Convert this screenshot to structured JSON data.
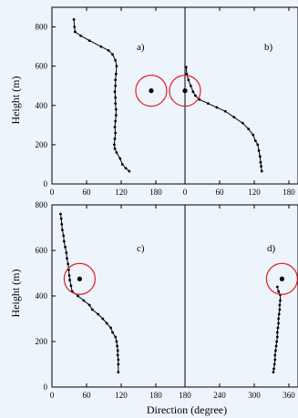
{
  "chart_data": [
    {
      "type": "line",
      "panel": "a)",
      "xlim": [
        0,
        180
      ],
      "ylim": [
        0,
        900
      ],
      "x_ticks": [
        "0",
        "60",
        "120",
        "180"
      ],
      "y_ticks": [
        "0",
        "200",
        "400",
        "600",
        "800"
      ],
      "ylabel": "Height (m)",
      "xlabel": "",
      "points": [
        [
          38,
          838
        ],
        [
          39,
          800
        ],
        [
          40,
          775
        ],
        [
          50,
          755
        ],
        [
          65,
          730
        ],
        [
          85,
          700
        ],
        [
          98,
          680
        ],
        [
          105,
          660
        ],
        [
          110,
          630
        ],
        [
          112,
          600
        ],
        [
          111,
          560
        ],
        [
          110,
          530
        ],
        [
          110,
          500
        ],
        [
          109,
          470
        ],
        [
          110,
          440
        ],
        [
          110,
          410
        ],
        [
          111,
          380
        ],
        [
          111,
          350
        ],
        [
          110,
          320
        ],
        [
          109,
          290
        ],
        [
          110,
          260
        ],
        [
          109,
          230
        ],
        [
          108,
          200
        ],
        [
          109,
          180
        ],
        [
          112,
          160
        ],
        [
          118,
          130
        ],
        [
          122,
          100
        ],
        [
          128,
          80
        ],
        [
          134,
          65
        ]
      ],
      "marker": {
        "x": 172,
        "y": 475
      }
    },
    {
      "type": "line",
      "panel": "b)",
      "xlim": [
        0,
        180
      ],
      "ylim": [
        0,
        900
      ],
      "x_ticks": [
        "0",
        "60",
        "120",
        "180"
      ],
      "y_ticks": [],
      "points": [
        [
          2,
          595
        ],
        [
          3,
          560
        ],
        [
          6,
          530
        ],
        [
          10,
          500
        ],
        [
          14,
          470
        ],
        [
          18,
          450
        ],
        [
          25,
          430
        ],
        [
          40,
          410
        ],
        [
          55,
          390
        ],
        [
          70,
          370
        ],
        [
          85,
          340
        ],
        [
          100,
          310
        ],
        [
          110,
          280
        ],
        [
          118,
          250
        ],
        [
          122,
          220
        ],
        [
          126,
          200
        ],
        [
          128,
          170
        ],
        [
          130,
          140
        ],
        [
          131,
          110
        ],
        [
          132,
          90
        ],
        [
          133,
          65
        ]
      ],
      "marker": {
        "x": 0,
        "y": 475
      }
    },
    {
      "type": "line",
      "panel": "c)",
      "xlim": [
        0,
        180
      ],
      "ylim": [
        0,
        800
      ],
      "x_ticks": [
        "0",
        "60",
        "120",
        "180"
      ],
      "y_ticks": [
        "0",
        "200",
        "400",
        "600",
        "800"
      ],
      "ylabel": "Height (m)",
      "xlabel": "",
      "points": [
        [
          15,
          760
        ],
        [
          16,
          740
        ],
        [
          17,
          715
        ],
        [
          18,
          690
        ],
        [
          20,
          665
        ],
        [
          21,
          640
        ],
        [
          23,
          615
        ],
        [
          25,
          590
        ],
        [
          26,
          565
        ],
        [
          28,
          540
        ],
        [
          29,
          515
        ],
        [
          30,
          490
        ],
        [
          31,
          470
        ],
        [
          33,
          445
        ],
        [
          35,
          420
        ],
        [
          45,
          400
        ],
        [
          55,
          380
        ],
        [
          65,
          360
        ],
        [
          70,
          340
        ],
        [
          80,
          320
        ],
        [
          88,
          300
        ],
        [
          95,
          280
        ],
        [
          102,
          260
        ],
        [
          105,
          240
        ],
        [
          110,
          220
        ],
        [
          112,
          200
        ],
        [
          113,
          180
        ],
        [
          114,
          160
        ],
        [
          114,
          140
        ],
        [
          115,
          120
        ],
        [
          115,
          100
        ],
        [
          115,
          65
        ]
      ],
      "marker": {
        "x": 48,
        "y": 475
      }
    },
    {
      "type": "line",
      "panel": "d)",
      "xlim": [
        180,
        360
      ],
      "ylim": [
        0,
        800
      ],
      "x_ticks": [
        "180",
        "240",
        "300",
        "360"
      ],
      "y_ticks": [],
      "xlabel": "Direction (degree)",
      "points": [
        [
          340,
          440
        ],
        [
          342,
          420
        ],
        [
          345,
          405
        ],
        [
          345,
          380
        ],
        [
          344,
          360
        ],
        [
          344,
          340
        ],
        [
          343,
          320
        ],
        [
          342,
          300
        ],
        [
          342,
          280
        ],
        [
          341,
          260
        ],
        [
          340,
          240
        ],
        [
          340,
          220
        ],
        [
          339,
          200
        ],
        [
          338,
          180
        ],
        [
          337,
          160
        ],
        [
          336,
          140
        ],
        [
          336,
          120
        ],
        [
          335,
          100
        ],
        [
          334,
          80
        ],
        [
          333,
          65
        ]
      ],
      "marker": {
        "x": 348,
        "y": 475
      }
    }
  ]
}
